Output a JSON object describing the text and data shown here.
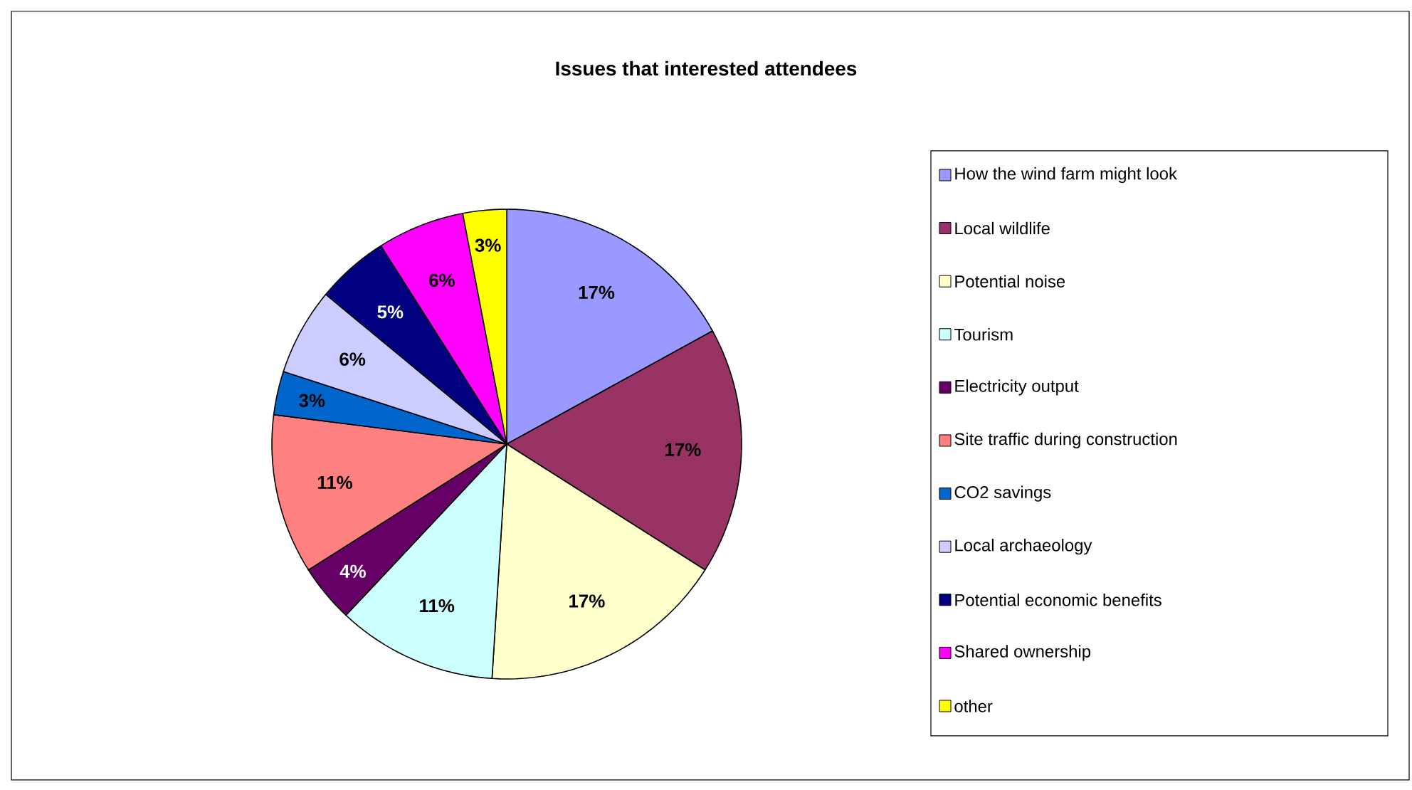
{
  "chart_data": {
    "type": "pie",
    "title": "Issues that interested attendees",
    "categories": [
      "How the wind farm might look",
      "Local wildlife",
      "Potential noise",
      "Tourism",
      "Electricity output",
      "Site traffic during construction",
      "CO2 savings",
      "Local archaeology",
      "Potential economic benefits",
      "Shared ownership",
      "other"
    ],
    "values": [
      17,
      17,
      17,
      11,
      4,
      11,
      3,
      6,
      5,
      6,
      3
    ],
    "value_labels": [
      "17%",
      "17%",
      "17%",
      "11%",
      "4%",
      "11%",
      "3%",
      "6%",
      "5%",
      "6%",
      "3%"
    ],
    "colors": [
      "#9999ff",
      "#993366",
      "#ffffcc",
      "#ccffff",
      "#660066",
      "#ff8080",
      "#0066cc",
      "#ccccff",
      "#000080",
      "#ff00ff",
      "#ffff00"
    ],
    "legend": "right"
  }
}
